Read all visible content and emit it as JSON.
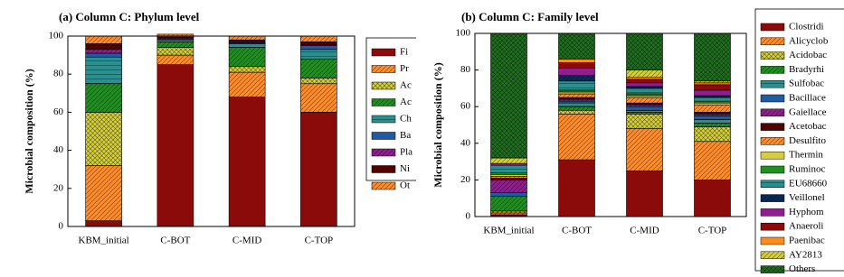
{
  "chart_data": [
    {
      "type": "bar",
      "stacked": true,
      "title": "(a) Column C: Phylum level",
      "ylabel": "Microbial composition (%)",
      "categories": [
        "KBM_initial",
        "C-BOT",
        "C-MID",
        "C-TOP"
      ],
      "ylim": [
        0,
        100
      ],
      "yticks": [
        0,
        20,
        40,
        60,
        80,
        100
      ],
      "series": [
        {
          "name": "Fi",
          "color": "#8b0a0a",
          "hatch": "none",
          "values": [
            3,
            85,
            68,
            60
          ]
        },
        {
          "name": "Pr",
          "color": "#ff8c2a",
          "hatch": "diag",
          "values": [
            29,
            5,
            13,
            15
          ]
        },
        {
          "name": "Ac",
          "color": "#d4cf3a",
          "hatch": "cross",
          "values": [
            28,
            4,
            3,
            3
          ]
        },
        {
          "name": "Ac",
          "color": "#1f8f1f",
          "hatch": "diag",
          "values": [
            15,
            3,
            10,
            10
          ]
        },
        {
          "name": "Ch",
          "color": "#2a8f8f",
          "hatch": "hline",
          "values": [
            14,
            1,
            2,
            5
          ]
        },
        {
          "name": "Ba",
          "color": "#1f5aa5",
          "hatch": "none",
          "values": [
            2,
            0.5,
            0.5,
            2
          ]
        },
        {
          "name": "Pla",
          "color": "#8f1f8f",
          "hatch": "diag",
          "values": [
            2,
            0.5,
            0.5,
            0.5
          ]
        },
        {
          "name": "Ni",
          "color": "#5a0000",
          "hatch": "diag",
          "values": [
            3,
            0.5,
            1,
            1.5
          ]
        },
        {
          "name": "Ot",
          "color": "#ff8c2a",
          "hatch": "diag",
          "values": [
            4,
            1.5,
            2,
            3
          ]
        }
      ]
    },
    {
      "type": "bar",
      "stacked": true,
      "title": "(b) Column C: Family level",
      "ylabel": "Microbial composition (%)",
      "categories": [
        "KBM_initial",
        "C-BOT",
        "C-MID",
        "C-TOP"
      ],
      "ylim": [
        0,
        100
      ],
      "yticks": [
        0,
        20,
        40,
        60,
        80,
        100
      ],
      "series": [
        {
          "name": "Clostridi",
          "color": "#8b0a0a",
          "hatch": "none",
          "values": [
            1,
            31,
            25,
            20
          ]
        },
        {
          "name": "Alicyclob",
          "color": "#ff8c2a",
          "hatch": "diag",
          "values": [
            1,
            25,
            23,
            21
          ]
        },
        {
          "name": "Acidobac",
          "color": "#d4cf3a",
          "hatch": "cross",
          "values": [
            1,
            2,
            8,
            8
          ]
        },
        {
          "name": "Bradyrhi",
          "color": "#1f8f1f",
          "hatch": "diag",
          "values": [
            8,
            2,
            1,
            2
          ]
        },
        {
          "name": "Sulfobac",
          "color": "#2a8f8f",
          "hatch": "hline",
          "values": [
            0,
            2,
            1,
            2
          ]
        },
        {
          "name": "Bacillace",
          "color": "#1f5aa5",
          "hatch": "none",
          "values": [
            2,
            1,
            2,
            2
          ]
        },
        {
          "name": "Gaiellace",
          "color": "#8f1f8f",
          "hatch": "diag",
          "values": [
            7,
            1,
            1,
            1
          ]
        },
        {
          "name": "Acetobac",
          "color": "#5a0000",
          "hatch": "diag",
          "values": [
            1,
            1,
            1,
            1
          ]
        },
        {
          "name": "Desulfito",
          "color": "#ff8c2a",
          "hatch": "diag",
          "values": [
            1,
            2,
            3,
            4
          ]
        },
        {
          "name": "Thermin",
          "color": "#d4cf3a",
          "hatch": "none",
          "values": [
            1,
            1,
            1,
            1
          ]
        },
        {
          "name": "Ruminoc",
          "color": "#1f8f1f",
          "hatch": "none",
          "values": [
            1,
            1,
            1,
            1
          ]
        },
        {
          "name": "EU68660",
          "color": "#2a8f8f",
          "hatch": "hline",
          "values": [
            4,
            5,
            3,
            2
          ]
        },
        {
          "name": "Veillonel",
          "color": "#0a2a55",
          "hatch": "diag",
          "values": [
            0,
            3,
            1,
            1
          ]
        },
        {
          "name": "Hyphom",
          "color": "#8f1f8f",
          "hatch": "none",
          "values": [
            1,
            4,
            2,
            3
          ]
        },
        {
          "name": "Anaeroli",
          "color": "#8b0a0a",
          "hatch": "none",
          "values": [
            0,
            3,
            2,
            3
          ]
        },
        {
          "name": "Paenibac",
          "color": "#ff8c1a",
          "hatch": "none",
          "values": [
            0,
            2,
            1,
            1
          ]
        },
        {
          "name": "AY2813",
          "color": "#d4cf3a",
          "hatch": "diag",
          "values": [
            3,
            0,
            4,
            1
          ]
        },
        {
          "name": "Others",
          "color": "#1f6f1f",
          "hatch": "cross",
          "values": [
            68,
            14,
            20,
            26
          ]
        }
      ]
    }
  ]
}
